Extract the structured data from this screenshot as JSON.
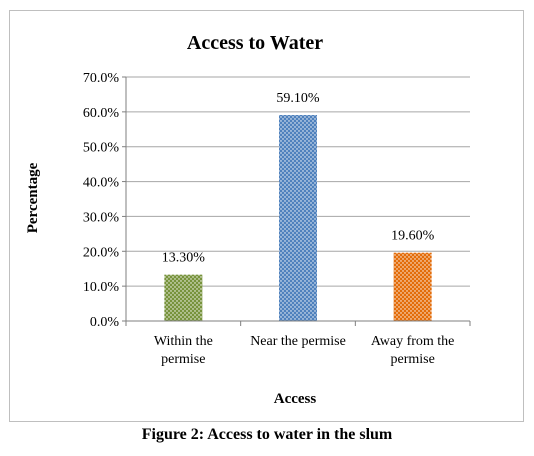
{
  "chart_data": {
    "type": "bar",
    "title": "Access to Water",
    "xlabel": "Access",
    "ylabel": "Percentage",
    "categories": [
      [
        "Within the",
        "permise"
      ],
      [
        "Near the permise"
      ],
      [
        "Away from the",
        "permise"
      ]
    ],
    "values": [
      13.3,
      59.1,
      19.6
    ],
    "data_labels": [
      "13.30%",
      "59.10%",
      "19.60%"
    ],
    "colors": [
      "#77933c",
      "#4f81bd",
      "#e36c09"
    ],
    "pattern": "dotted",
    "ylim": [
      0,
      70
    ],
    "yticks": [
      0,
      10,
      20,
      30,
      40,
      50,
      60,
      70
    ],
    "ytick_labels": [
      "0.0%",
      "10.0%",
      "20.0%",
      "30.0%",
      "40.0%",
      "50.0%",
      "60.0%",
      "70.0%"
    ],
    "grid": true,
    "legend": "none"
  },
  "caption": "Figure 2: Access to water in the slum"
}
